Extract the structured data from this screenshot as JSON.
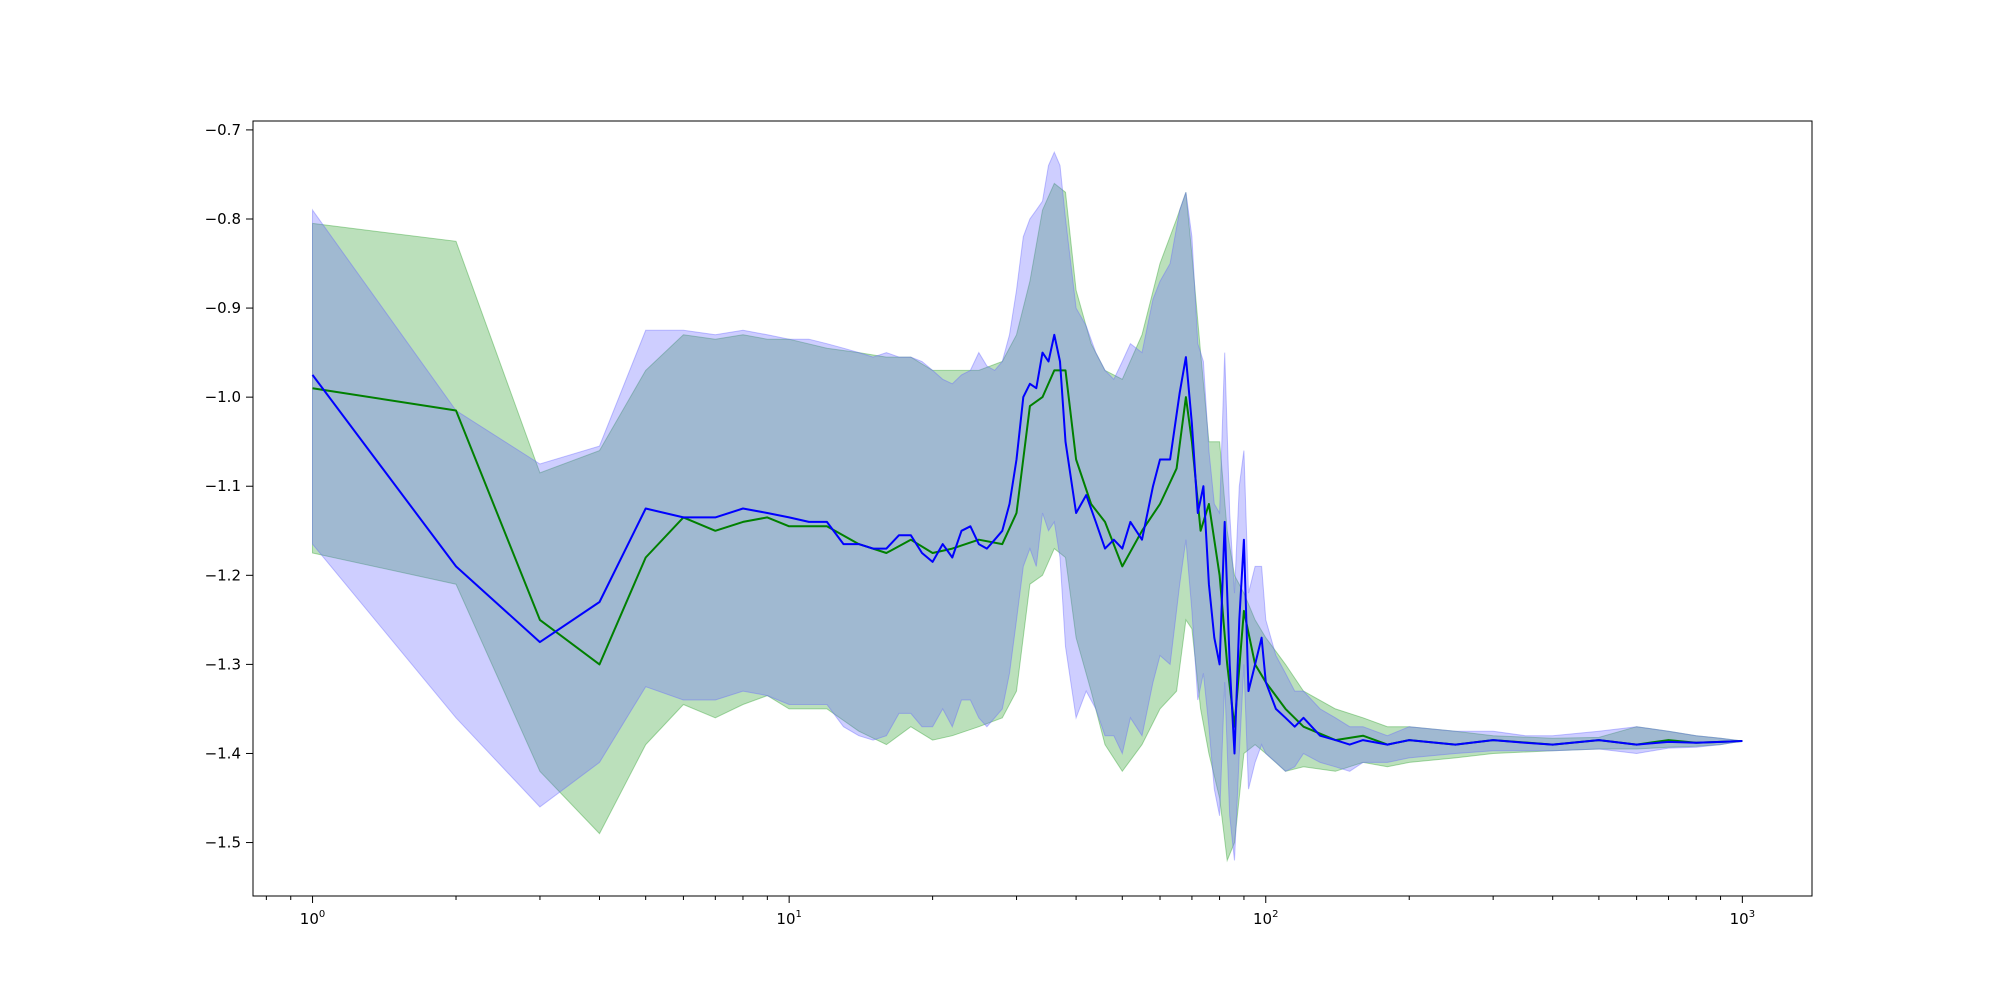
{
  "chart_data": {
    "type": "line",
    "title": "",
    "xlabel": "",
    "ylabel": "",
    "x_scale": "log",
    "xlim": [
      0.75,
      1400
    ],
    "ylim": [
      -1.56,
      -0.69
    ],
    "grid": false,
    "legend": "none",
    "x_ticks": [
      {
        "value": 1,
        "base": "10",
        "exp": "0"
      },
      {
        "value": 10,
        "base": "10",
        "exp": "1"
      },
      {
        "value": 100,
        "base": "10",
        "exp": "2"
      },
      {
        "value": 1000,
        "base": "10",
        "exp": "3"
      }
    ],
    "y_ticks": [
      {
        "value": -0.7,
        "label": "−0.7"
      },
      {
        "value": -0.8,
        "label": "−0.8"
      },
      {
        "value": -0.9,
        "label": "−0.9"
      },
      {
        "value": -1.0,
        "label": "−1.0"
      },
      {
        "value": -1.1,
        "label": "−1.1"
      },
      {
        "value": -1.2,
        "label": "−1.2"
      },
      {
        "value": -1.3,
        "label": "−1.3"
      },
      {
        "value": -1.4,
        "label": "−1.4"
      },
      {
        "value": -1.5,
        "label": "−1.5"
      }
    ],
    "series": [
      {
        "color": "#008000",
        "band_color": "#2ca02c",
        "x": [
          1,
          2,
          3,
          4,
          5,
          6,
          7,
          8,
          9,
          10,
          12,
          14,
          16,
          18,
          20,
          22,
          25,
          28,
          30,
          32,
          34,
          36,
          38,
          40,
          43,
          46,
          50,
          55,
          60,
          65,
          68,
          70,
          73,
          76,
          80,
          83,
          86,
          90,
          95,
          100,
          110,
          120,
          140,
          160,
          180,
          200,
          250,
          300,
          400,
          500,
          600,
          700,
          800,
          900,
          1000
        ],
        "y": [
          -0.99,
          -1.015,
          -1.25,
          -1.3,
          -1.18,
          -1.135,
          -1.15,
          -1.14,
          -1.135,
          -1.145,
          -1.145,
          -1.165,
          -1.175,
          -1.16,
          -1.175,
          -1.17,
          -1.16,
          -1.165,
          -1.13,
          -1.01,
          -1.0,
          -0.97,
          -0.97,
          -1.07,
          -1.12,
          -1.14,
          -1.19,
          -1.15,
          -1.12,
          -1.08,
          -1.0,
          -1.05,
          -1.15,
          -1.12,
          -1.2,
          -1.3,
          -1.37,
          -1.24,
          -1.3,
          -1.32,
          -1.35,
          -1.37,
          -1.385,
          -1.38,
          -1.39,
          -1.385,
          -1.39,
          -1.385,
          -1.39,
          -1.385,
          -1.39,
          -1.385,
          -1.388,
          -1.387,
          -1.386
        ],
        "upper": [
          -0.805,
          -0.825,
          -1.085,
          -1.06,
          -0.97,
          -0.93,
          -0.935,
          -0.93,
          -0.935,
          -0.935,
          -0.945,
          -0.95,
          -0.955,
          -0.955,
          -0.97,
          -0.97,
          -0.97,
          -0.96,
          -0.93,
          -0.87,
          -0.79,
          -0.76,
          -0.77,
          -0.88,
          -0.94,
          -0.97,
          -0.98,
          -0.93,
          -0.85,
          -0.8,
          -0.77,
          -0.84,
          -0.95,
          -1.05,
          -1.05,
          -1.15,
          -1.2,
          -1.22,
          -1.25,
          -1.27,
          -1.3,
          -1.33,
          -1.35,
          -1.36,
          -1.37,
          -1.37,
          -1.375,
          -1.38,
          -1.383,
          -1.382,
          -1.37,
          -1.375,
          -1.38,
          -1.383,
          -1.386
        ],
        "lower": [
          -1.175,
          -1.21,
          -1.42,
          -1.49,
          -1.39,
          -1.345,
          -1.36,
          -1.345,
          -1.335,
          -1.35,
          -1.35,
          -1.375,
          -1.39,
          -1.37,
          -1.385,
          -1.38,
          -1.37,
          -1.36,
          -1.33,
          -1.21,
          -1.2,
          -1.17,
          -1.18,
          -1.27,
          -1.33,
          -1.39,
          -1.42,
          -1.39,
          -1.35,
          -1.33,
          -1.25,
          -1.26,
          -1.35,
          -1.4,
          -1.45,
          -1.52,
          -1.5,
          -1.4,
          -1.39,
          -1.4,
          -1.42,
          -1.415,
          -1.42,
          -1.41,
          -1.415,
          -1.41,
          -1.405,
          -1.4,
          -1.397,
          -1.395,
          -1.395,
          -1.393,
          -1.392,
          -1.39,
          -1.386
        ]
      },
      {
        "color": "#0000ff",
        "band_color": "#6666ff",
        "x": [
          1,
          2,
          3,
          4,
          5,
          6,
          7,
          8,
          9,
          10,
          11,
          12,
          13,
          14,
          15,
          16,
          17,
          18,
          19,
          20,
          21,
          22,
          23,
          24,
          25,
          26,
          27,
          28,
          29,
          30,
          31,
          32,
          33,
          34,
          35,
          36,
          37,
          38,
          40,
          42,
          44,
          46,
          48,
          50,
          52,
          55,
          58,
          60,
          63,
          66,
          68,
          70,
          72,
          74,
          76,
          78,
          80,
          82,
          84,
          86,
          88,
          90,
          92,
          95,
          98,
          100,
          105,
          110,
          115,
          120,
          130,
          140,
          150,
          160,
          180,
          200,
          250,
          300,
          350,
          400,
          500,
          600,
          700,
          800,
          900,
          1000
        ],
        "y": [
          -0.975,
          -1.19,
          -1.275,
          -1.23,
          -1.125,
          -1.135,
          -1.135,
          -1.125,
          -1.13,
          -1.135,
          -1.14,
          -1.14,
          -1.165,
          -1.165,
          -1.17,
          -1.17,
          -1.155,
          -1.155,
          -1.175,
          -1.185,
          -1.165,
          -1.18,
          -1.15,
          -1.145,
          -1.165,
          -1.17,
          -1.16,
          -1.15,
          -1.12,
          -1.07,
          -1.0,
          -0.985,
          -0.99,
          -0.95,
          -0.96,
          -0.93,
          -0.96,
          -1.05,
          -1.13,
          -1.11,
          -1.14,
          -1.17,
          -1.16,
          -1.17,
          -1.14,
          -1.16,
          -1.1,
          -1.07,
          -1.07,
          -0.995,
          -0.955,
          -1.03,
          -1.13,
          -1.1,
          -1.21,
          -1.27,
          -1.3,
          -1.14,
          -1.3,
          -1.4,
          -1.25,
          -1.16,
          -1.33,
          -1.3,
          -1.27,
          -1.32,
          -1.35,
          -1.36,
          -1.37,
          -1.36,
          -1.38,
          -1.385,
          -1.39,
          -1.385,
          -1.39,
          -1.385,
          -1.39,
          -1.385,
          -1.388,
          -1.39,
          -1.385,
          -1.39,
          -1.387,
          -1.388,
          -1.387,
          -1.386
        ],
        "upper": [
          -0.79,
          -1.015,
          -1.075,
          -1.055,
          -0.925,
          -0.925,
          -0.93,
          -0.925,
          -0.93,
          -0.935,
          -0.935,
          -0.94,
          -0.945,
          -0.95,
          -0.955,
          -0.95,
          -0.955,
          -0.955,
          -0.96,
          -0.97,
          -0.98,
          -0.985,
          -0.975,
          -0.97,
          -0.95,
          -0.965,
          -0.97,
          -0.96,
          -0.93,
          -0.88,
          -0.82,
          -0.8,
          -0.79,
          -0.78,
          -0.74,
          -0.725,
          -0.74,
          -0.8,
          -0.9,
          -0.92,
          -0.95,
          -0.97,
          -0.98,
          -0.96,
          -0.94,
          -0.95,
          -0.89,
          -0.87,
          -0.85,
          -0.79,
          -0.77,
          -0.82,
          -0.94,
          -0.96,
          -1.06,
          -1.12,
          -1.13,
          -0.95,
          -1.13,
          -1.22,
          -1.1,
          -1.06,
          -1.22,
          -1.19,
          -1.19,
          -1.25,
          -1.29,
          -1.31,
          -1.33,
          -1.33,
          -1.35,
          -1.36,
          -1.37,
          -1.37,
          -1.38,
          -1.37,
          -1.375,
          -1.375,
          -1.38,
          -1.38,
          -1.375,
          -1.37,
          -1.375,
          -1.38,
          -1.383,
          -1.386
        ],
        "upper_note": "",
        "lower": [
          -1.165,
          -1.36,
          -1.46,
          -1.41,
          -1.325,
          -1.34,
          -1.34,
          -1.33,
          -1.335,
          -1.345,
          -1.345,
          -1.345,
          -1.37,
          -1.38,
          -1.385,
          -1.38,
          -1.355,
          -1.355,
          -1.37,
          -1.37,
          -1.35,
          -1.37,
          -1.34,
          -1.34,
          -1.36,
          -1.37,
          -1.36,
          -1.35,
          -1.31,
          -1.25,
          -1.19,
          -1.17,
          -1.19,
          -1.13,
          -1.15,
          -1.14,
          -1.18,
          -1.28,
          -1.36,
          -1.33,
          -1.35,
          -1.38,
          -1.38,
          -1.4,
          -1.36,
          -1.38,
          -1.32,
          -1.29,
          -1.3,
          -1.21,
          -1.16,
          -1.24,
          -1.34,
          -1.31,
          -1.37,
          -1.44,
          -1.47,
          -1.32,
          -1.47,
          -1.52,
          -1.4,
          -1.3,
          -1.44,
          -1.41,
          -1.39,
          -1.4,
          -1.41,
          -1.42,
          -1.415,
          -1.4,
          -1.41,
          -1.415,
          -1.42,
          -1.41,
          -1.41,
          -1.405,
          -1.4,
          -1.397,
          -1.397,
          -1.397,
          -1.395,
          -1.4,
          -1.394,
          -1.393,
          -1.39,
          -1.386
        ]
      }
    ]
  }
}
